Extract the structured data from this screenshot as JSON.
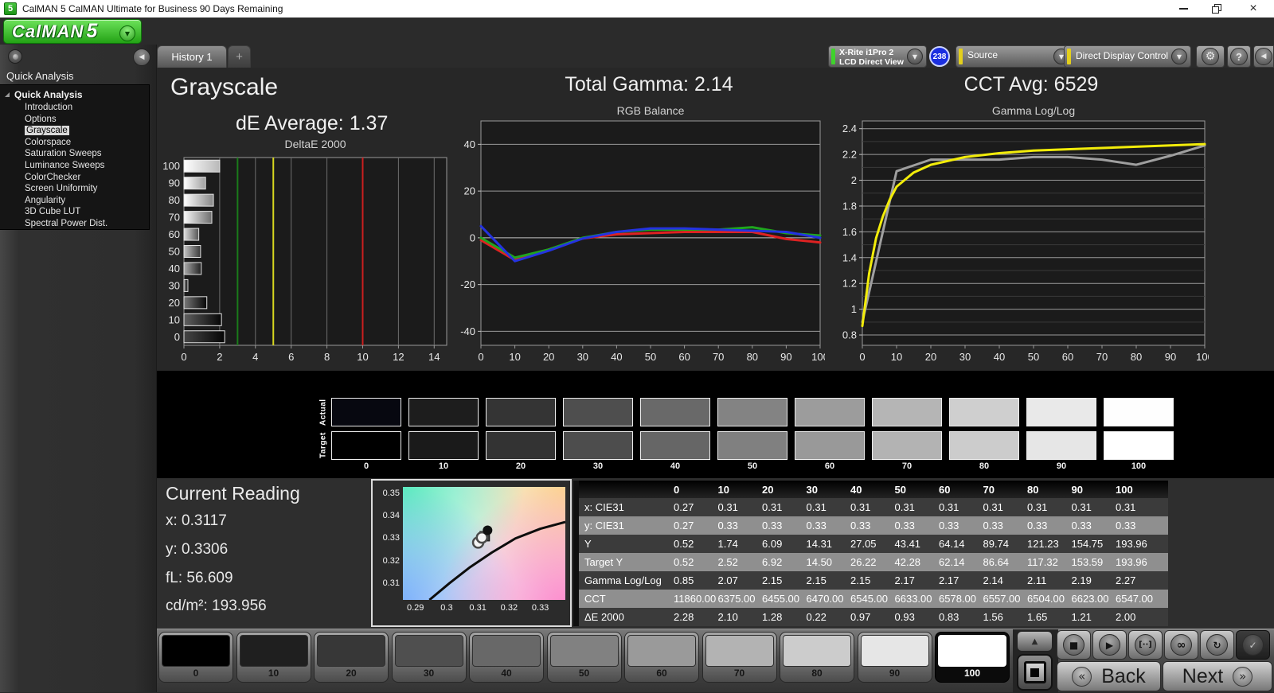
{
  "window": {
    "icon_text": "5",
    "title": "CalMAN 5 CalMAN Ultimate for Business 90 Days Remaining"
  },
  "logo": {
    "brand": "CalMAN",
    "brand_number": "5"
  },
  "tab_bar": {
    "active_tab": "History 1",
    "add_tab": "+"
  },
  "toolbar": {
    "meter_device": {
      "line1": "X-Rite i1Pro 2",
      "line2": "LCD Direct View",
      "stripe_color": "#3fd32c"
    },
    "badge": "238",
    "source": {
      "label": "Source",
      "stripe_color": "#e3cf1c"
    },
    "display_control": {
      "label": "Direct Display Control",
      "stripe_color": "#e3cf1c"
    },
    "gear_glyph": "⚙",
    "help_label": "?",
    "collapse_glyph": "◀"
  },
  "sidebar": {
    "header": "Quick Analysis",
    "root": "Quick Analysis",
    "items": [
      "Introduction",
      "Options",
      "Grayscale",
      "Colorspace",
      "Saturation Sweeps",
      "Luminance Sweeps",
      "ColorChecker",
      "Screen Uniformity",
      "Angularity",
      "3D Cube LUT",
      "Spectral Power Dist."
    ],
    "selected_index": 2
  },
  "headers": {
    "page_title": "Grayscale",
    "de_average": "dE Average: 1.37",
    "total_gamma": "Total Gamma: 2.14",
    "cct_avg": "CCT Avg: 6529"
  },
  "chart_data": [
    {
      "id": "deltae",
      "type": "bar",
      "title": "DeltaE 2000",
      "orientation": "horizontal",
      "categories": [
        100,
        90,
        80,
        70,
        60,
        50,
        40,
        30,
        20,
        10,
        0
      ],
      "values": [
        2.0,
        1.21,
        1.65,
        1.56,
        0.83,
        0.93,
        0.97,
        0.22,
        1.28,
        2.1,
        2.28
      ],
      "xlim": [
        0,
        14.7
      ],
      "xticks": [
        0,
        2,
        4,
        6,
        8,
        10,
        12,
        14
      ],
      "reference_lines": [
        {
          "x": 3,
          "color": "#1a7a1a"
        },
        {
          "x": 5,
          "color": "#d6d61f"
        },
        {
          "x": 10,
          "color": "#cc1f1f"
        }
      ]
    },
    {
      "id": "rgb_balance",
      "type": "line",
      "title": "RGB Balance",
      "x": [
        0,
        10,
        20,
        30,
        40,
        50,
        60,
        70,
        80,
        90,
        100
      ],
      "xticks": [
        0,
        10,
        20,
        30,
        40,
        50,
        60,
        70,
        80,
        90,
        100
      ],
      "ylim": [
        -46,
        50
      ],
      "yticks": [
        40,
        20,
        0,
        -20,
        -40
      ],
      "series": [
        {
          "name": "red",
          "color": "#de2222",
          "values": [
            -1,
            -9.5,
            -5,
            -0.3,
            1.5,
            2,
            2.5,
            2.5,
            2.5,
            -0.5,
            -2
          ]
        },
        {
          "name": "green",
          "color": "#1fa51f",
          "values": [
            0,
            -8.5,
            -5,
            0,
            2.5,
            3.5,
            3.5,
            3.5,
            4.5,
            2,
            1
          ]
        },
        {
          "name": "blue",
          "color": "#2433e0",
          "values": [
            5,
            -10,
            -5.5,
            -0.3,
            2.5,
            4,
            4,
            3.5,
            3,
            2.5,
            0
          ]
        }
      ]
    },
    {
      "id": "gamma_loglog",
      "type": "line",
      "title": "Gamma Log/Log",
      "xticks": [
        0,
        10,
        20,
        30,
        40,
        50,
        60,
        70,
        80,
        90,
        100
      ],
      "ylim": [
        0.72,
        2.46
      ],
      "yticks": [
        2.4,
        2.2,
        2,
        1.8,
        1.6,
        1.4,
        1.2,
        1,
        0.8
      ],
      "minor_step": 0.1,
      "series": [
        {
          "name": "measured",
          "color": "#9f9f9f",
          "x": [
            0,
            10,
            20,
            30,
            40,
            50,
            60,
            70,
            80,
            90,
            100
          ],
          "values": [
            0.9,
            2.07,
            2.16,
            2.16,
            2.16,
            2.18,
            2.18,
            2.16,
            2.12,
            2.19,
            2.27
          ]
        },
        {
          "name": "target",
          "color": "#f2ec0a",
          "x": [
            0,
            2,
            4,
            6,
            8,
            10,
            15,
            20,
            30,
            40,
            50,
            60,
            70,
            80,
            90,
            100
          ],
          "values": [
            0.87,
            1.28,
            1.55,
            1.72,
            1.85,
            1.95,
            2.06,
            2.12,
            2.18,
            2.21,
            2.23,
            2.24,
            2.25,
            2.26,
            2.27,
            2.28
          ]
        }
      ]
    },
    {
      "id": "cie_detail",
      "type": "scatter",
      "xlim": [
        0.286,
        0.338
      ],
      "ylim": [
        0.303,
        0.353
      ],
      "xticks": [
        "0.29",
        "0.3",
        "0.31",
        "0.32",
        "0.33"
      ],
      "yticks": [
        "0.35",
        "0.34",
        "0.33",
        "0.32",
        "0.31"
      ],
      "locus": [
        [
          0.2945,
          0.303
        ],
        [
          0.301,
          0.3105
        ],
        [
          0.3075,
          0.3175
        ],
        [
          0.3145,
          0.324
        ],
        [
          0.322,
          0.3302
        ],
        [
          0.33,
          0.3345
        ],
        [
          0.338,
          0.3375
        ]
      ],
      "points": [
        {
          "x": 0.3122,
          "y": 0.3312,
          "type": "square"
        },
        {
          "x": 0.3101,
          "y": 0.3284,
          "type": "open"
        },
        {
          "x": 0.3113,
          "y": 0.3306,
          "type": "open"
        },
        {
          "x": 0.3131,
          "y": 0.3338,
          "type": "filled"
        }
      ]
    }
  ],
  "gray_strip": {
    "row_labels": [
      "Actual",
      "Target"
    ],
    "levels": [
      0,
      10,
      20,
      30,
      40,
      50,
      60,
      70,
      80,
      90,
      100
    ],
    "actual_colors": [
      "#070810",
      "#1d1d1d",
      "#343434",
      "#4e4e4e",
      "#696969",
      "#838383",
      "#9c9c9c",
      "#b5b5b5",
      "#cfcfcf",
      "#e9e9e9",
      "#fefefe"
    ],
    "target_colors": [
      "#000000",
      "#1a1a1a",
      "#333333",
      "#4d4d4d",
      "#666666",
      "#808080",
      "#999999",
      "#b3b3b3",
      "#cccccc",
      "#e6e6e6",
      "#ffffff"
    ]
  },
  "current_reading": {
    "title": "Current Reading",
    "x_label": "x: 0.3117",
    "y_label": "y: 0.3306",
    "fl_label": "fL: 56.609",
    "cd_label": "cd/m²: 193.956"
  },
  "table": {
    "columns": [
      "0",
      "10",
      "20",
      "30",
      "40",
      "50",
      "60",
      "70",
      "80",
      "90",
      "100"
    ],
    "rows": [
      {
        "label": "x: CIE31",
        "values": [
          "0.27",
          "0.31",
          "0.31",
          "0.31",
          "0.31",
          "0.31",
          "0.31",
          "0.31",
          "0.31",
          "0.31",
          "0.31"
        ]
      },
      {
        "label": "y: CIE31",
        "values": [
          "0.27",
          "0.33",
          "0.33",
          "0.33",
          "0.33",
          "0.33",
          "0.33",
          "0.33",
          "0.33",
          "0.33",
          "0.33"
        ]
      },
      {
        "label": "Y",
        "values": [
          "0.52",
          "1.74",
          "6.09",
          "14.31",
          "27.05",
          "43.41",
          "64.14",
          "89.74",
          "121.23",
          "154.75",
          "193.96"
        ]
      },
      {
        "label": "Target Y",
        "values": [
          "0.52",
          "2.52",
          "6.92",
          "14.50",
          "26.22",
          "42.28",
          "62.14",
          "86.64",
          "117.32",
          "153.59",
          "193.96"
        ]
      },
      {
        "label": "Gamma Log/Log",
        "values": [
          "0.85",
          "2.07",
          "2.15",
          "2.15",
          "2.15",
          "2.17",
          "2.17",
          "2.14",
          "2.11",
          "2.19",
          "2.27"
        ]
      },
      {
        "label": "CCT",
        "values": [
          "11860.00",
          "6375.00",
          "6455.00",
          "6470.00",
          "6545.00",
          "6633.00",
          "6578.00",
          "6557.00",
          "6504.00",
          "6623.00",
          "6547.00"
        ]
      },
      {
        "label": "ΔE 2000",
        "values": [
          "2.28",
          "2.10",
          "1.28",
          "0.22",
          "0.97",
          "0.93",
          "0.83",
          "1.56",
          "1.65",
          "1.21",
          "2.00"
        ]
      }
    ]
  },
  "bottom_bar": {
    "levels": [
      0,
      10,
      20,
      30,
      40,
      50,
      60,
      70,
      80,
      90,
      100
    ],
    "colors": [
      "#000000",
      "#1f1f1f",
      "#373737",
      "#4f4f4f",
      "#686868",
      "#818181",
      "#9a9a9a",
      "#b3b3b3",
      "#cccccc",
      "#e6e6e6",
      "#ffffff"
    ],
    "selected_level": 100,
    "up_glyph": "▲",
    "transport": [
      {
        "name": "stop",
        "glyph": "■"
      },
      {
        "name": "play",
        "glyph": "▶"
      },
      {
        "name": "range",
        "glyph": "[··]"
      },
      {
        "name": "loop",
        "glyph": "∞"
      },
      {
        "name": "refresh",
        "glyph": "↻"
      },
      {
        "name": "confirm",
        "glyph": "✓"
      }
    ],
    "back_chev": "«",
    "back": "Back",
    "next": "Next",
    "next_chev": "»"
  }
}
